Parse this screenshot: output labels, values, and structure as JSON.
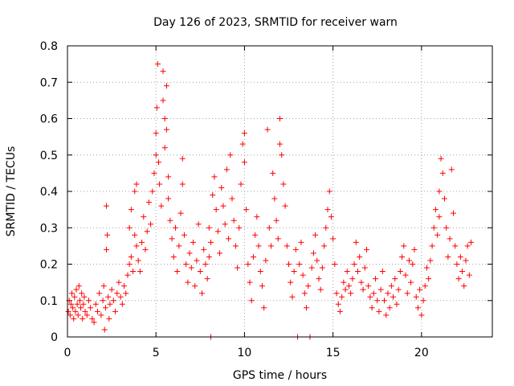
{
  "chart_data": {
    "type": "scatter",
    "title": "Day 126 of 2023, SRMTID for receiver warn",
    "xlabel": "GPS time / hours",
    "ylabel": "SRMTID / TECUs",
    "xlim": [
      0,
      24
    ],
    "ylim": [
      0,
      0.8
    ],
    "xticks": [
      0,
      5,
      10,
      15,
      20
    ],
    "yticks": [
      0,
      0.1,
      0.2,
      0.3,
      0.4,
      0.5,
      0.6,
      0.7,
      0.8
    ],
    "grid": true,
    "marker": "+",
    "color": "#ff0000",
    "series": [
      {
        "name": "SRMTID",
        "points": [
          [
            0.05,
            0.07
          ],
          [
            0.1,
            0.1
          ],
          [
            0.15,
            0.06
          ],
          [
            0.2,
            0.09
          ],
          [
            0.25,
            0.12
          ],
          [
            0.3,
            0.08
          ],
          [
            0.35,
            0.05
          ],
          [
            0.4,
            0.11
          ],
          [
            0.45,
            0.07
          ],
          [
            0.5,
            0.13
          ],
          [
            0.55,
            0.09
          ],
          [
            0.6,
            0.06
          ],
          [
            0.65,
            0.14
          ],
          [
            0.7,
            0.1
          ],
          [
            0.75,
            0.08
          ],
          [
            0.8,
            0.12
          ],
          [
            0.85,
            0.05
          ],
          [
            0.9,
            0.09
          ],
          [
            0.95,
            0.11
          ],
          [
            1.0,
            0.07
          ],
          [
            1.1,
            0.06
          ],
          [
            1.2,
            0.1
          ],
          [
            1.3,
            0.08
          ],
          [
            1.4,
            0.05
          ],
          [
            1.5,
            0.04
          ],
          [
            1.6,
            0.09
          ],
          [
            1.7,
            0.07
          ],
          [
            1.8,
            0.12
          ],
          [
            1.9,
            0.06
          ],
          [
            2.0,
            0.1
          ],
          [
            2.05,
            0.14
          ],
          [
            2.1,
            0.02
          ],
          [
            2.15,
            0.08
          ],
          [
            2.2,
            0.24
          ],
          [
            2.2,
            0.36
          ],
          [
            2.25,
            0.28
          ],
          [
            2.3,
            0.11
          ],
          [
            2.35,
            0.05
          ],
          [
            2.4,
            0.09
          ],
          [
            2.5,
            0.13
          ],
          [
            2.6,
            0.1
          ],
          [
            2.7,
            0.07
          ],
          [
            2.8,
            0.12
          ],
          [
            2.9,
            0.15
          ],
          [
            3.0,
            0.11
          ],
          [
            3.1,
            0.09
          ],
          [
            3.2,
            0.14
          ],
          [
            3.3,
            0.12
          ],
          [
            3.4,
            0.17
          ],
          [
            3.5,
            0.2
          ],
          [
            3.5,
            0.3
          ],
          [
            3.6,
            0.22
          ],
          [
            3.6,
            0.35
          ],
          [
            3.7,
            0.18
          ],
          [
            3.8,
            0.28
          ],
          [
            3.8,
            0.4
          ],
          [
            3.9,
            0.25
          ],
          [
            3.9,
            0.42
          ],
          [
            4.0,
            0.21
          ],
          [
            4.1,
            0.18
          ],
          [
            4.2,
            0.26
          ],
          [
            4.3,
            0.33
          ],
          [
            4.4,
            0.24
          ],
          [
            4.5,
            0.29
          ],
          [
            4.6,
            0.37
          ],
          [
            4.7,
            0.31
          ],
          [
            4.8,
            0.4
          ],
          [
            4.9,
            0.45
          ],
          [
            5.0,
            0.56
          ],
          [
            5.0,
            0.5
          ],
          [
            5.05,
            0.63
          ],
          [
            5.1,
            0.75
          ],
          [
            5.15,
            0.48
          ],
          [
            5.2,
            0.42
          ],
          [
            5.3,
            0.36
          ],
          [
            5.4,
            0.65
          ],
          [
            5.4,
            0.73
          ],
          [
            5.5,
            0.6
          ],
          [
            5.5,
            0.52
          ],
          [
            5.6,
            0.69
          ],
          [
            5.6,
            0.57
          ],
          [
            5.7,
            0.44
          ],
          [
            5.7,
            0.38
          ],
          [
            5.8,
            0.32
          ],
          [
            5.9,
            0.27
          ],
          [
            6.0,
            0.22
          ],
          [
            6.1,
            0.3
          ],
          [
            6.2,
            0.18
          ],
          [
            6.3,
            0.25
          ],
          [
            6.4,
            0.34
          ],
          [
            6.5,
            0.49
          ],
          [
            6.5,
            0.42
          ],
          [
            6.6,
            0.28
          ],
          [
            6.7,
            0.2
          ],
          [
            6.8,
            0.15
          ],
          [
            6.9,
            0.23
          ],
          [
            7.0,
            0.19
          ],
          [
            7.1,
            0.26
          ],
          [
            7.2,
            0.14
          ],
          [
            7.3,
            0.21
          ],
          [
            7.4,
            0.31
          ],
          [
            7.5,
            0.18
          ],
          [
            7.6,
            0.12
          ],
          [
            7.7,
            0.24
          ],
          [
            7.8,
            0.2
          ],
          [
            7.9,
            0.16
          ],
          [
            8.0,
            0.22
          ],
          [
            8.0,
            0.3
          ],
          [
            8.1,
            0.0
          ],
          [
            8.1,
            0.26
          ],
          [
            8.2,
            0.39
          ],
          [
            8.3,
            0.44
          ],
          [
            8.4,
            0.35
          ],
          [
            8.5,
            0.29
          ],
          [
            8.6,
            0.23
          ],
          [
            8.7,
            0.41
          ],
          [
            8.8,
            0.36
          ],
          [
            8.9,
            0.31
          ],
          [
            9.0,
            0.46
          ],
          [
            9.1,
            0.27
          ],
          [
            9.2,
            0.5
          ],
          [
            9.3,
            0.38
          ],
          [
            9.4,
            0.32
          ],
          [
            9.5,
            0.25
          ],
          [
            9.6,
            0.19
          ],
          [
            9.7,
            0.3
          ],
          [
            9.8,
            0.42
          ],
          [
            9.9,
            0.53
          ],
          [
            10.0,
            0.56
          ],
          [
            10.0,
            0.48
          ],
          [
            10.1,
            0.35
          ],
          [
            10.2,
            0.2
          ],
          [
            10.3,
            0.15
          ],
          [
            10.4,
            0.1
          ],
          [
            10.5,
            0.22
          ],
          [
            10.6,
            0.28
          ],
          [
            10.7,
            0.33
          ],
          [
            10.8,
            0.25
          ],
          [
            10.9,
            0.18
          ],
          [
            11.0,
            0.14
          ],
          [
            11.1,
            0.08
          ],
          [
            11.2,
            0.21
          ],
          [
            11.3,
            0.57
          ],
          [
            11.4,
            0.3
          ],
          [
            11.5,
            0.25
          ],
          [
            11.6,
            0.45
          ],
          [
            11.7,
            0.38
          ],
          [
            11.8,
            0.32
          ],
          [
            11.9,
            0.27
          ],
          [
            12.0,
            0.6
          ],
          [
            12.0,
            0.53
          ],
          [
            12.1,
            0.5
          ],
          [
            12.2,
            0.42
          ],
          [
            12.3,
            0.36
          ],
          [
            12.4,
            0.25
          ],
          [
            12.5,
            0.2
          ],
          [
            12.6,
            0.15
          ],
          [
            12.7,
            0.11
          ],
          [
            12.8,
            0.18
          ],
          [
            12.9,
            0.24
          ],
          [
            13.0,
            0.0
          ],
          [
            13.1,
            0.2
          ],
          [
            13.2,
            0.26
          ],
          [
            13.3,
            0.17
          ],
          [
            13.4,
            0.12
          ],
          [
            13.5,
            0.08
          ],
          [
            13.6,
            0.14
          ],
          [
            13.7,
            0.0
          ],
          [
            13.8,
            0.19
          ],
          [
            13.9,
            0.23
          ],
          [
            14.0,
            0.28
          ],
          [
            14.1,
            0.21
          ],
          [
            14.2,
            0.16
          ],
          [
            14.3,
            0.13
          ],
          [
            14.4,
            0.19
          ],
          [
            14.5,
            0.25
          ],
          [
            14.6,
            0.3
          ],
          [
            14.7,
            0.35
          ],
          [
            14.8,
            0.4
          ],
          [
            14.9,
            0.33
          ],
          [
            15.0,
            0.27
          ],
          [
            15.1,
            0.2
          ],
          [
            15.2,
            0.12
          ],
          [
            15.3,
            0.09
          ],
          [
            15.4,
            0.07
          ],
          [
            15.5,
            0.11
          ],
          [
            15.6,
            0.15
          ],
          [
            15.7,
            0.13
          ],
          [
            15.8,
            0.18
          ],
          [
            15.9,
            0.14
          ],
          [
            16.0,
            0.12
          ],
          [
            16.1,
            0.16
          ],
          [
            16.2,
            0.2
          ],
          [
            16.3,
            0.26
          ],
          [
            16.4,
            0.18
          ],
          [
            16.5,
            0.22
          ],
          [
            16.6,
            0.15
          ],
          [
            16.7,
            0.13
          ],
          [
            16.8,
            0.19
          ],
          [
            16.9,
            0.24
          ],
          [
            17.0,
            0.14
          ],
          [
            17.1,
            0.11
          ],
          [
            17.2,
            0.08
          ],
          [
            17.3,
            0.12
          ],
          [
            17.4,
            0.16
          ],
          [
            17.5,
            0.1
          ],
          [
            17.6,
            0.07
          ],
          [
            17.7,
            0.13
          ],
          [
            17.8,
            0.18
          ],
          [
            17.9,
            0.1
          ],
          [
            18.0,
            0.06
          ],
          [
            18.1,
            0.12
          ],
          [
            18.2,
            0.08
          ],
          [
            18.3,
            0.14
          ],
          [
            18.4,
            0.11
          ],
          [
            18.5,
            0.16
          ],
          [
            18.6,
            0.09
          ],
          [
            18.7,
            0.13
          ],
          [
            18.8,
            0.18
          ],
          [
            18.9,
            0.22
          ],
          [
            19.0,
            0.25
          ],
          [
            19.1,
            0.17
          ],
          [
            19.2,
            0.12
          ],
          [
            19.3,
            0.21
          ],
          [
            19.4,
            0.15
          ],
          [
            19.5,
            0.2
          ],
          [
            19.6,
            0.24
          ],
          [
            19.7,
            0.11
          ],
          [
            19.8,
            0.08
          ],
          [
            19.9,
            0.13
          ],
          [
            20.0,
            0.06
          ],
          [
            20.1,
            0.1
          ],
          [
            20.2,
            0.14
          ],
          [
            20.3,
            0.19
          ],
          [
            20.4,
            0.16
          ],
          [
            20.5,
            0.21
          ],
          [
            20.6,
            0.25
          ],
          [
            20.7,
            0.3
          ],
          [
            20.8,
            0.35
          ],
          [
            20.9,
            0.28
          ],
          [
            21.0,
            0.4
          ],
          [
            21.0,
            0.33
          ],
          [
            21.1,
            0.49
          ],
          [
            21.2,
            0.45
          ],
          [
            21.3,
            0.38
          ],
          [
            21.4,
            0.3
          ],
          [
            21.5,
            0.22
          ],
          [
            21.6,
            0.27
          ],
          [
            21.7,
            0.46
          ],
          [
            21.8,
            0.34
          ],
          [
            21.9,
            0.25
          ],
          [
            22.0,
            0.2
          ],
          [
            22.1,
            0.16
          ],
          [
            22.2,
            0.22
          ],
          [
            22.3,
            0.18
          ],
          [
            22.4,
            0.14
          ],
          [
            22.5,
            0.21
          ],
          [
            22.6,
            0.25
          ],
          [
            22.7,
            0.17
          ],
          [
            22.8,
            0.26
          ]
        ]
      }
    ]
  }
}
